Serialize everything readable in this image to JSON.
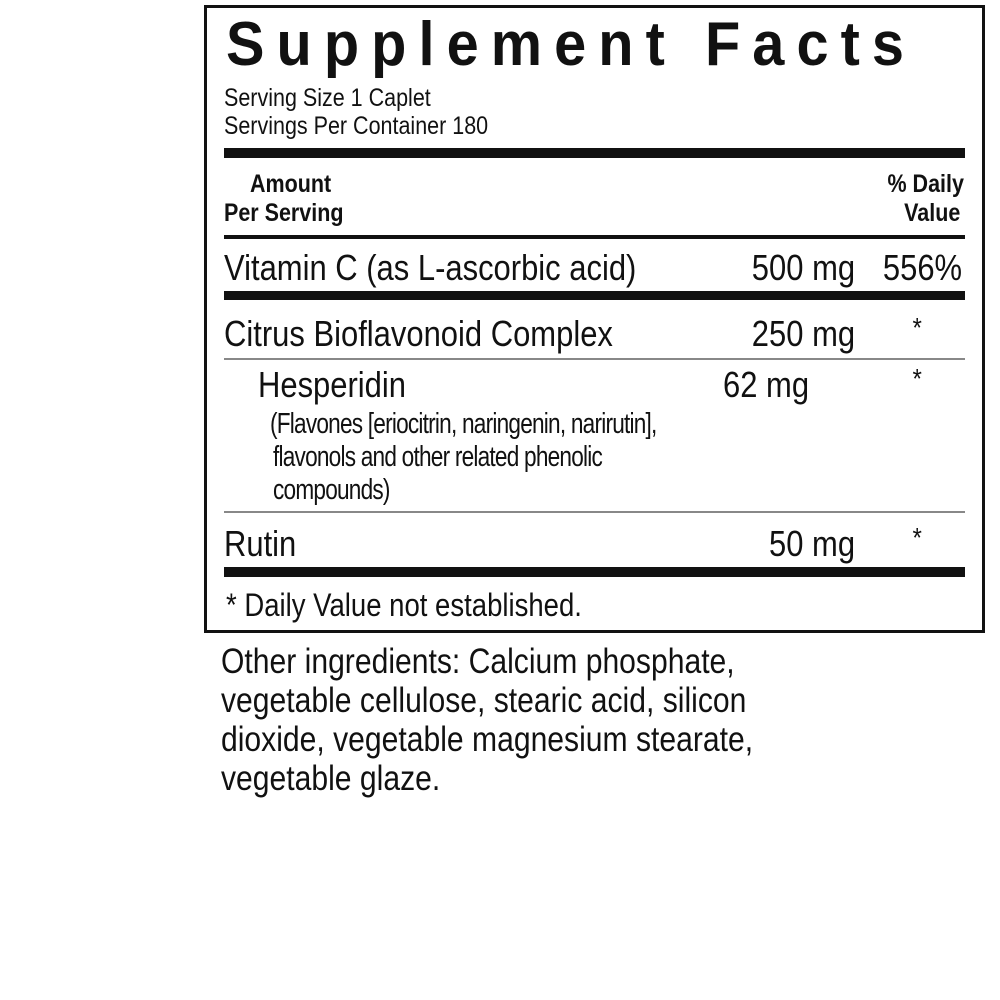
{
  "label": {
    "title": "Supplement Facts",
    "serving_size": "Serving Size 1 Caplet",
    "servings_per_container": "Servings Per Container 180",
    "header": {
      "amount_line1": "Amount",
      "amount_line2": "Per Serving",
      "dv_line1": "% Daily",
      "dv_line2": "Value"
    },
    "rows": [
      {
        "name": "Vitamin C (as L-ascorbic acid)",
        "amount": "500 mg",
        "dv": "556%"
      },
      {
        "name": "Citrus Bioflavonoid Complex",
        "amount": "250 mg",
        "dv": "*"
      },
      {
        "name": "Hesperidin",
        "amount": "62 mg",
        "dv": "*",
        "note": [
          "(Flavones [eriocitrin,  naringenin, narirutin],",
          "flavonols and other related phenolic",
          "compounds)"
        ]
      },
      {
        "name": "Rutin",
        "amount": "50 mg",
        "dv": "*"
      }
    ],
    "footnote": "* Daily Value not established."
  },
  "other_ingredients": [
    "Other ingredients: Calcium phosphate,",
    "vegetable cellulose, stearic acid, silicon",
    "dioxide, vegetable magnesium stearate,",
    "vegetable glaze."
  ]
}
